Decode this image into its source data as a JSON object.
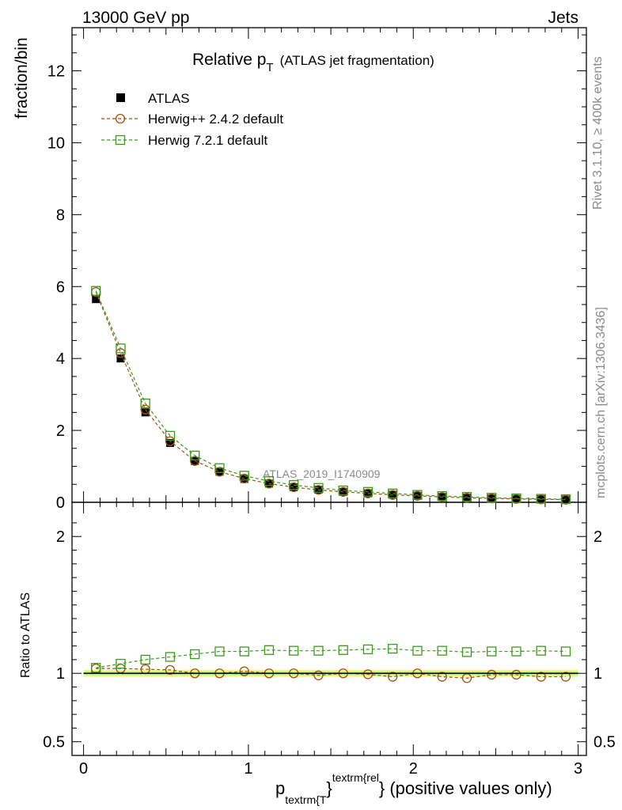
{
  "header": {
    "left": "13000 GeV pp",
    "right": "Jets"
  },
  "side_text": {
    "rivet": "Rivet 3.1.10, ≥ 400k events",
    "mcplots": "mcplots.cern.ch [arXiv:1306.3436]"
  },
  "chart_data": [
    {
      "type": "scatter",
      "title_main": "Relative p",
      "title_sub": "T",
      "title_rest": "(ATLAS jet fragmentation)",
      "ylabel": "fraction/bin",
      "watermark": "ATLAS_2019_I1740909",
      "xlim": [
        -0.07,
        3.05
      ],
      "ylim": [
        0,
        13.2
      ],
      "yticks": [
        0,
        2,
        4,
        6,
        8,
        10,
        12
      ],
      "ytick_labels": [
        "0",
        "2",
        "4",
        "6",
        "8",
        "10",
        "12"
      ],
      "x": [
        0.075,
        0.225,
        0.375,
        0.525,
        0.675,
        0.825,
        0.975,
        1.125,
        1.275,
        1.425,
        1.575,
        1.725,
        1.875,
        2.025,
        2.175,
        2.325,
        2.475,
        2.625,
        2.775,
        2.925
      ],
      "series": [
        {
          "name": "ATLAS",
          "marker": "filled-square",
          "color": "#000000",
          "values": [
            5.65,
            4.0,
            2.5,
            1.65,
            1.15,
            0.85,
            0.65,
            0.52,
            0.42,
            0.35,
            0.29,
            0.25,
            0.21,
            0.18,
            0.15,
            0.13,
            0.11,
            0.095,
            0.085,
            0.075
          ]
        },
        {
          "name": "Herwig++ 2.4.2 default",
          "marker": "open-circle",
          "color": "#a0520a",
          "values": [
            5.85,
            4.15,
            2.58,
            1.7,
            1.15,
            0.85,
            0.66,
            0.52,
            0.42,
            0.345,
            0.29,
            0.248,
            0.205,
            0.18,
            0.146,
            0.125,
            0.109,
            0.094,
            0.083,
            0.073
          ]
        },
        {
          "name": "Herwig 7.2.1 default",
          "marker": "open-square",
          "color": "#3a9a1a",
          "values": [
            5.88,
            4.28,
            2.75,
            1.85,
            1.3,
            0.95,
            0.74,
            0.59,
            0.48,
            0.4,
            0.33,
            0.29,
            0.245,
            0.207,
            0.173,
            0.15,
            0.127,
            0.11,
            0.098,
            0.087
          ]
        }
      ]
    },
    {
      "type": "scatter",
      "ylabel": "Ratio to ATLAS",
      "xlabel_main": "p",
      "xlabel_sub": "textrm{T",
      "xlabel_sup": "textrm{rel",
      "xlabel_rest": "} (positive values only)",
      "xlabel_brace": "}",
      "xlim": [
        -0.07,
        3.05
      ],
      "ylim": [
        0.4,
        2.25
      ],
      "yticks": [
        0.5,
        1,
        2
      ],
      "ytick_labels": [
        "0.5",
        "1",
        "2"
      ],
      "xticks": [
        0,
        1,
        2,
        3
      ],
      "xtick_labels": [
        "0",
        "1",
        "2",
        "3"
      ],
      "band": {
        "yellow": [
          0.975,
          1.025
        ],
        "green": [
          0.988,
          1.012
        ]
      },
      "x": [
        0.075,
        0.225,
        0.375,
        0.525,
        0.675,
        0.825,
        0.975,
        1.125,
        1.275,
        1.425,
        1.575,
        1.725,
        1.875,
        2.025,
        2.175,
        2.325,
        2.475,
        2.625,
        2.775,
        2.925
      ],
      "series": [
        {
          "name": "Herwig++ 2.4.2 default",
          "marker": "open-circle",
          "color": "#a0520a",
          "values": [
            1.035,
            1.035,
            1.03,
            1.025,
            1.0,
            1.0,
            1.015,
            1.0,
            1.0,
            0.985,
            1.0,
            0.993,
            0.975,
            1.0,
            0.975,
            0.965,
            0.99,
            0.99,
            0.975,
            0.975
          ]
        },
        {
          "name": "Herwig 7.2.1 default",
          "marker": "open-square",
          "color": "#3a9a1a",
          "values": [
            1.04,
            1.07,
            1.1,
            1.12,
            1.14,
            1.16,
            1.16,
            1.17,
            1.165,
            1.165,
            1.17,
            1.175,
            1.18,
            1.165,
            1.165,
            1.155,
            1.16,
            1.16,
            1.165,
            1.16
          ]
        }
      ]
    }
  ]
}
